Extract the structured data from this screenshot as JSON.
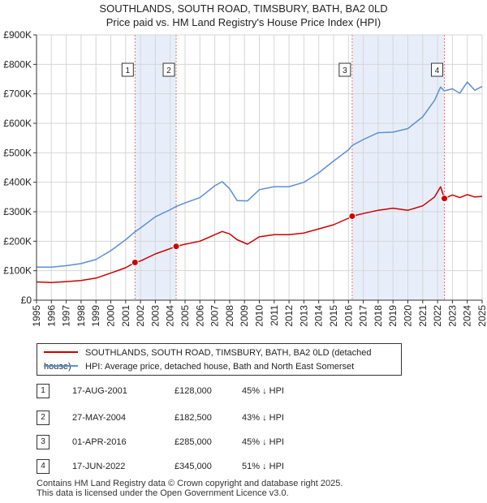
{
  "title_line1": "SOUTHLANDS, SOUTH ROAD, TIMSBURY, BATH, BA2 0LD",
  "title_line2": "Price paid vs. HM Land Registry's House Price Index (HPI)",
  "chart_data": {
    "type": "line",
    "title": "SOUTHLANDS, SOUTH ROAD, TIMSBURY, BATH, BA2 0LD — Price paid vs. HM Land Registry's House Price Index (HPI)",
    "xlabel": "",
    "ylabel": "",
    "xlim": [
      1995.0,
      2025.0
    ],
    "ylim": [
      0,
      900000
    ],
    "y_ticks": [
      0,
      100000,
      200000,
      300000,
      400000,
      500000,
      600000,
      700000,
      800000,
      900000
    ],
    "y_tick_labels": [
      "£0",
      "£100K",
      "£200K",
      "£300K",
      "£400K",
      "£500K",
      "£600K",
      "£700K",
      "£800K",
      "£900K"
    ],
    "x_ticks": [
      1995,
      1996,
      1997,
      1998,
      1999,
      2000,
      2001,
      2002,
      2003,
      2004,
      2005,
      2006,
      2007,
      2008,
      2009,
      2010,
      2011,
      2012,
      2013,
      2014,
      2015,
      2016,
      2017,
      2018,
      2019,
      2020,
      2021,
      2022,
      2023,
      2024,
      2025
    ],
    "x_tick_labels": [
      "1995",
      "1996",
      "1997",
      "1998",
      "1999",
      "2000",
      "2001",
      "2002",
      "2003",
      "2004",
      "2005",
      "2006",
      "2007",
      "2008",
      "2009",
      "2010",
      "2011",
      "2012",
      "2013",
      "2014",
      "2015",
      "2016",
      "2017",
      "2018",
      "2019",
      "2020",
      "2021",
      "2022",
      "2023",
      "2024",
      "2025"
    ],
    "grid": true,
    "series": [
      {
        "name": "SOUTHLANDS, SOUTH ROAD, TIMSBURY, BATH, BA2 0LD (detached house)",
        "color": "#cc0000",
        "x": [
          1995.0,
          1996.0,
          1997.0,
          1998.0,
          1999.0,
          2000.0,
          2001.0,
          2001.63,
          2002.0,
          2003.0,
          2004.0,
          2004.4,
          2005.0,
          2006.0,
          2007.0,
          2007.5,
          2008.0,
          2008.5,
          2009.2,
          2010.0,
          2011.0,
          2012.0,
          2013.0,
          2014.0,
          2015.0,
          2016.0,
          2016.25,
          2017.0,
          2018.0,
          2019.0,
          2020.0,
          2021.0,
          2021.8,
          2022.2,
          2022.46,
          2023.0,
          2023.5,
          2024.0,
          2024.5,
          2025.0
        ],
        "y": [
          62000,
          60000,
          63000,
          67000,
          75000,
          92000,
          110000,
          128000,
          133000,
          157000,
          175000,
          182500,
          190000,
          200000,
          222000,
          233000,
          225000,
          205000,
          190000,
          215000,
          222000,
          222000,
          228000,
          242000,
          256000,
          278000,
          285000,
          294000,
          305000,
          312000,
          305000,
          320000,
          350000,
          385000,
          345000,
          357000,
          348000,
          358000,
          350000,
          352000
        ]
      },
      {
        "name": "HPI: Average price, detached house, Bath and North East Somerset",
        "color": "#5b8fd4",
        "x": [
          1995.0,
          1996.0,
          1997.0,
          1998.0,
          1999.0,
          2000.0,
          2001.0,
          2001.63,
          2002.0,
          2003.0,
          2004.0,
          2004.4,
          2005.0,
          2006.0,
          2007.0,
          2007.5,
          2008.0,
          2008.5,
          2009.2,
          2010.0,
          2011.0,
          2012.0,
          2013.0,
          2014.0,
          2015.0,
          2016.0,
          2016.25,
          2017.0,
          2018.0,
          2019.0,
          2020.0,
          2021.0,
          2021.8,
          2022.2,
          2022.46,
          2023.0,
          2023.5,
          2024.0,
          2024.5,
          2025.0
        ],
        "y": [
          112000,
          112000,
          117000,
          124000,
          138000,
          168000,
          205000,
          232000,
          245000,
          283000,
          307000,
          318000,
          330000,
          348000,
          388000,
          402000,
          378000,
          338000,
          337000,
          375000,
          385000,
          385000,
          400000,
          432000,
          472000,
          510000,
          525000,
          545000,
          568000,
          570000,
          582000,
          622000,
          678000,
          723000,
          710000,
          717000,
          702000,
          740000,
          712000,
          725000
        ]
      }
    ],
    "sales": [
      {
        "label": "1",
        "x": 2001.63,
        "price": 128000
      },
      {
        "label": "2",
        "x": 2004.4,
        "price": 182500
      },
      {
        "label": "3",
        "x": 2016.25,
        "price": 285000
      },
      {
        "label": "4",
        "x": 2022.46,
        "price": 345000
      }
    ],
    "shaded_ranges": [
      [
        2001.63,
        2004.4
      ],
      [
        2016.25,
        2022.46
      ]
    ],
    "legend_position": "below"
  },
  "legend": {
    "property_label": "SOUTHLANDS, SOUTH ROAD, TIMSBURY, BATH, BA2 0LD (detached house)",
    "hpi_label": "HPI: Average price, detached house, Bath and North East Somerset",
    "property_color": "#cc0000",
    "hpi_color": "#5b8fd4"
  },
  "sales_table": [
    {
      "num": "1",
      "date": "17-AUG-2001",
      "price": "£128,000",
      "hpi": "45% ↓ HPI"
    },
    {
      "num": "2",
      "date": "27-MAY-2004",
      "price": "£182,500",
      "hpi": "43% ↓ HPI"
    },
    {
      "num": "3",
      "date": "01-APR-2016",
      "price": "£285,000",
      "hpi": "45% ↓ HPI"
    },
    {
      "num": "4",
      "date": "17-JUN-2022",
      "price": "£345,000",
      "hpi": "51% ↓ HPI"
    }
  ],
  "footer": {
    "line1": "Contains HM Land Registry data © Crown copyright and database right 2025.",
    "line2": "This data is licensed under the Open Government Licence v3.0."
  }
}
